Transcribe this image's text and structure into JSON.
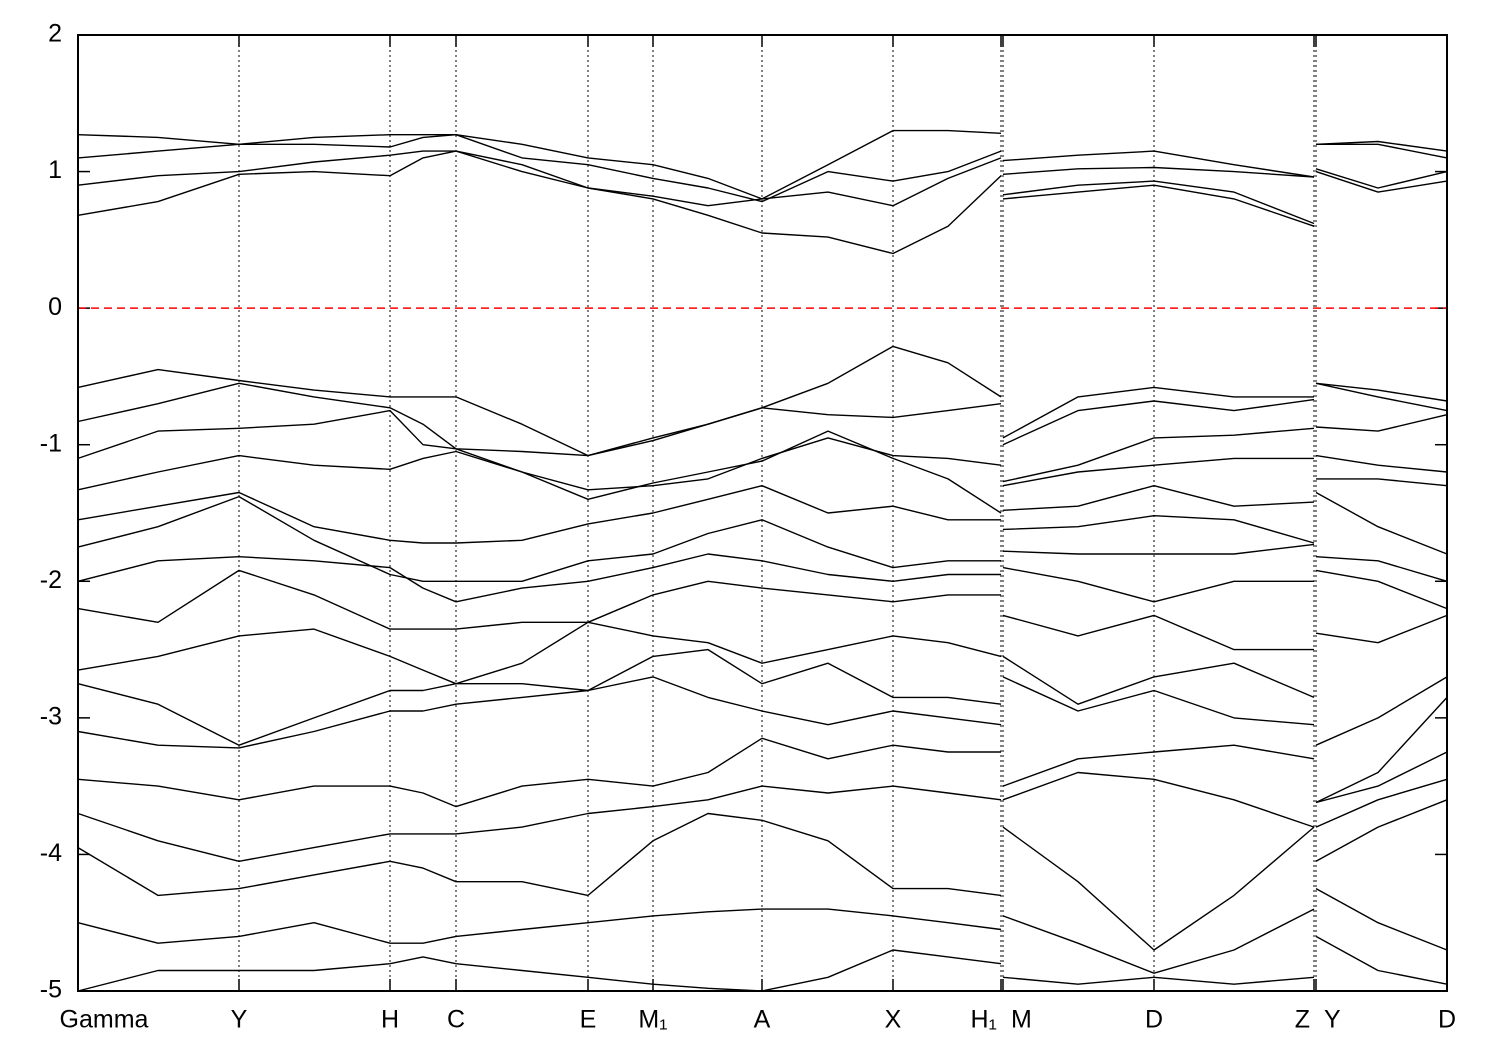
{
  "chart_data": {
    "type": "line",
    "x": [
      0,
      80,
      161,
      236,
      312,
      345,
      378,
      444,
      510,
      575,
      630,
      684,
      750,
      815,
      870,
      923,
      null,
      925,
      1000,
      1076,
      1156,
      1236,
      null,
      1238,
      1300,
      1369
    ],
    "xlim": [
      0,
      1369
    ],
    "xticks": [
      {
        "value": 0,
        "label": "Gamma"
      },
      {
        "value": 161,
        "label": "Y"
      },
      {
        "value": 312,
        "label": "H"
      },
      {
        "value": 378,
        "label": "C"
      },
      {
        "value": 510,
        "label": "E"
      },
      {
        "value": 575,
        "label": "M₁"
      },
      {
        "value": 684,
        "label": "A"
      },
      {
        "value": 815,
        "label": "X"
      },
      {
        "value": 923,
        "label": "H₁"
      },
      {
        "value": 925,
        "label": "M"
      },
      {
        "value": 1076,
        "label": "D"
      },
      {
        "value": 1236,
        "label": "Z"
      },
      {
        "value": 1238,
        "label": "Y"
      },
      {
        "value": 1369,
        "label": "D"
      }
    ],
    "ylim": [
      -5,
      2
    ],
    "yticks": [
      -5,
      -4,
      -3,
      -2,
      -1,
      0,
      1,
      2
    ],
    "grid": true,
    "color": "#000000",
    "reference_line": {
      "value": 0,
      "color": "#ff0000",
      "style": "dashed"
    },
    "series": [
      {
        "values": [
          1.27,
          1.25,
          1.2,
          1.25,
          1.27,
          1.27,
          1.27,
          1.2,
          1.1,
          1.05,
          0.95,
          0.8,
          1.05,
          1.3,
          1.3,
          1.28,
          null,
          1.08,
          1.12,
          1.15,
          1.05,
          0.96,
          null,
          1.2,
          1.22,
          1.15
        ]
      },
      {
        "values": [
          1.1,
          1.15,
          1.2,
          1.2,
          1.18,
          1.25,
          1.27,
          1.1,
          1.05,
          0.95,
          0.88,
          0.78,
          1.0,
          0.93,
          1.0,
          1.15,
          null,
          0.98,
          1.02,
          1.03,
          1.0,
          0.96,
          null,
          1.2,
          1.2,
          1.1
        ]
      },
      {
        "values": [
          0.9,
          0.97,
          1.0,
          1.07,
          1.12,
          1.15,
          1.15,
          1.05,
          0.88,
          0.82,
          0.75,
          0.8,
          0.85,
          0.75,
          0.95,
          1.1,
          null,
          0.83,
          0.9,
          0.93,
          0.85,
          0.62,
          null,
          1.02,
          0.88,
          1.0
        ]
      },
      {
        "values": [
          0.68,
          0.78,
          0.98,
          1.0,
          0.97,
          1.1,
          1.15,
          1.0,
          0.88,
          0.8,
          0.68,
          0.55,
          0.52,
          0.4,
          0.6,
          0.97,
          null,
          0.8,
          0.85,
          0.9,
          0.8,
          0.6,
          null,
          1.0,
          0.85,
          0.93
        ]
      },
      {
        "values": [
          -0.58,
          -0.45,
          -0.53,
          -0.6,
          -0.65,
          -0.65,
          -0.65,
          -0.85,
          -1.08,
          -0.97,
          -0.85,
          -0.73,
          -0.55,
          -0.28,
          -0.4,
          -0.65,
          null,
          -0.95,
          -0.65,
          -0.58,
          -0.65,
          -0.65,
          null,
          -0.55,
          -0.6,
          -0.68
        ]
      },
      {
        "values": [
          -0.83,
          -0.7,
          -0.55,
          -0.65,
          -0.73,
          -0.85,
          -1.03,
          -1.05,
          -1.08,
          -0.95,
          -0.85,
          -0.73,
          -0.78,
          -0.8,
          -0.75,
          -0.7,
          null,
          -1.0,
          -0.75,
          -0.68,
          -0.75,
          -0.67,
          null,
          -0.55,
          -0.65,
          -0.75
        ]
      },
      {
        "values": [
          -1.1,
          -0.9,
          -0.88,
          -0.85,
          -0.75,
          -1.0,
          -1.03,
          -1.2,
          -1.33,
          -1.3,
          -1.25,
          -1.1,
          -0.95,
          -1.08,
          -1.1,
          -1.15,
          null,
          -1.27,
          -1.15,
          -0.95,
          -0.93,
          -0.88,
          null,
          -0.87,
          -0.9,
          -0.78
        ]
      },
      {
        "values": [
          -1.33,
          -1.2,
          -1.08,
          -1.15,
          -1.18,
          -1.1,
          -1.05,
          -1.2,
          -1.4,
          -1.28,
          -1.2,
          -1.12,
          -0.9,
          -1.1,
          -1.25,
          -1.5,
          null,
          -1.3,
          -1.2,
          -1.15,
          -1.1,
          -1.1,
          null,
          -1.08,
          -1.15,
          -1.2
        ]
      },
      {
        "values": [
          -1.55,
          -1.45,
          -1.35,
          -1.6,
          -1.7,
          -1.72,
          -1.72,
          -1.7,
          -1.58,
          -1.5,
          -1.4,
          -1.3,
          -1.5,
          -1.45,
          -1.55,
          -1.55,
          null,
          -1.48,
          -1.45,
          -1.3,
          -1.45,
          -1.42,
          null,
          -1.25,
          -1.25,
          -1.3
        ]
      },
      {
        "values": [
          -1.75,
          -1.6,
          -1.38,
          -1.7,
          -1.95,
          -2.0,
          -2.0,
          -2.0,
          -1.85,
          -1.8,
          -1.65,
          -1.55,
          -1.75,
          -1.9,
          -1.85,
          -1.85,
          null,
          -1.62,
          -1.6,
          -1.52,
          -1.55,
          -1.72,
          null,
          -1.35,
          -1.6,
          -1.8
        ]
      },
      {
        "values": [
          -2.0,
          -1.85,
          -1.82,
          -1.85,
          -1.9,
          -2.05,
          -2.15,
          -2.05,
          -2.0,
          -1.9,
          -1.8,
          -1.85,
          -1.95,
          -2.0,
          -1.95,
          -1.95,
          null,
          -1.78,
          -1.8,
          -1.8,
          -1.8,
          -1.73,
          null,
          -1.82,
          -1.85,
          -2.0
        ]
      },
      {
        "values": [
          -2.2,
          -2.3,
          -1.92,
          -2.1,
          -2.35,
          -2.35,
          -2.35,
          -2.3,
          -2.3,
          -2.1,
          -2.0,
          -2.05,
          -2.1,
          -2.15,
          -2.1,
          -2.1,
          null,
          -1.9,
          -2.0,
          -2.15,
          -2.0,
          -2.0,
          null,
          -1.92,
          -2.0,
          -2.2
        ]
      },
      {
        "values": [
          -2.65,
          -2.55,
          -2.4,
          -2.35,
          -2.55,
          -2.65,
          -2.75,
          -2.6,
          -2.3,
          -2.4,
          -2.45,
          -2.6,
          -2.5,
          -2.4,
          -2.45,
          -2.55,
          null,
          -2.25,
          -2.4,
          -2.25,
          -2.5,
          -2.5,
          null,
          -2.38,
          -2.45,
          -2.25
        ]
      },
      {
        "values": [
          -2.75,
          -2.9,
          -3.2,
          -3.0,
          -2.8,
          -2.8,
          -2.75,
          -2.75,
          -2.8,
          -2.55,
          -2.5,
          -2.75,
          -2.6,
          -2.85,
          -2.85,
          -2.9,
          null,
          -2.55,
          -2.9,
          -2.7,
          -2.6,
          -2.85,
          null,
          -3.2,
          -3.0,
          -2.7
        ]
      },
      {
        "values": [
          -3.1,
          -3.2,
          -3.22,
          -3.1,
          -2.95,
          -2.95,
          -2.9,
          -2.85,
          -2.8,
          -2.7,
          -2.85,
          -2.95,
          -3.05,
          -2.95,
          -3.0,
          -3.05,
          null,
          -2.7,
          -2.95,
          -2.8,
          -3.0,
          -3.05,
          null,
          -3.62,
          -3.4,
          -2.85
        ]
      },
      {
        "values": [
          -3.45,
          -3.5,
          -3.6,
          -3.5,
          -3.5,
          -3.55,
          -3.65,
          -3.5,
          -3.45,
          -3.5,
          -3.4,
          -3.15,
          -3.3,
          -3.2,
          -3.25,
          -3.25,
          null,
          -3.5,
          -3.3,
          -3.25,
          -3.2,
          -3.3,
          null,
          -3.62,
          -3.5,
          -3.25
        ]
      },
      {
        "values": [
          -3.7,
          -3.9,
          -4.05,
          -3.95,
          -3.85,
          -3.85,
          -3.85,
          -3.8,
          -3.7,
          -3.65,
          -3.6,
          -3.5,
          -3.55,
          -3.5,
          -3.55,
          -3.6,
          null,
          -3.6,
          -3.4,
          -3.45,
          -3.6,
          -3.8,
          null,
          -3.8,
          -3.6,
          -3.45
        ]
      },
      {
        "values": [
          -3.95,
          -4.3,
          -4.25,
          -4.15,
          -4.05,
          -4.1,
          -4.2,
          -4.2,
          -4.3,
          -3.9,
          -3.7,
          -3.75,
          -3.9,
          -4.25,
          -4.25,
          -4.3,
          null,
          -3.8,
          -4.2,
          -4.7,
          -4.3,
          -3.8,
          null,
          -4.05,
          -3.8,
          -3.6
        ]
      },
      {
        "values": [
          -4.5,
          -4.65,
          -4.6,
          -4.5,
          -4.65,
          -4.65,
          -4.6,
          -4.55,
          -4.5,
          -4.45,
          -4.42,
          -4.4,
          -4.4,
          -4.45,
          -4.5,
          -4.55,
          null,
          -4.45,
          -4.65,
          -4.87,
          -4.7,
          -4.4,
          null,
          -4.25,
          -4.5,
          -4.7
        ]
      },
      {
        "values": [
          -5.0,
          -4.85,
          -4.85,
          -4.85,
          -4.8,
          -4.75,
          -4.8,
          -4.85,
          -4.9,
          -4.95,
          -4.98,
          -5.0,
          -4.9,
          -4.7,
          -4.75,
          -4.8,
          null,
          -4.9,
          -4.95,
          -4.9,
          -4.95,
          -4.9,
          null,
          -4.6,
          -4.85,
          -4.95
        ]
      }
    ]
  }
}
